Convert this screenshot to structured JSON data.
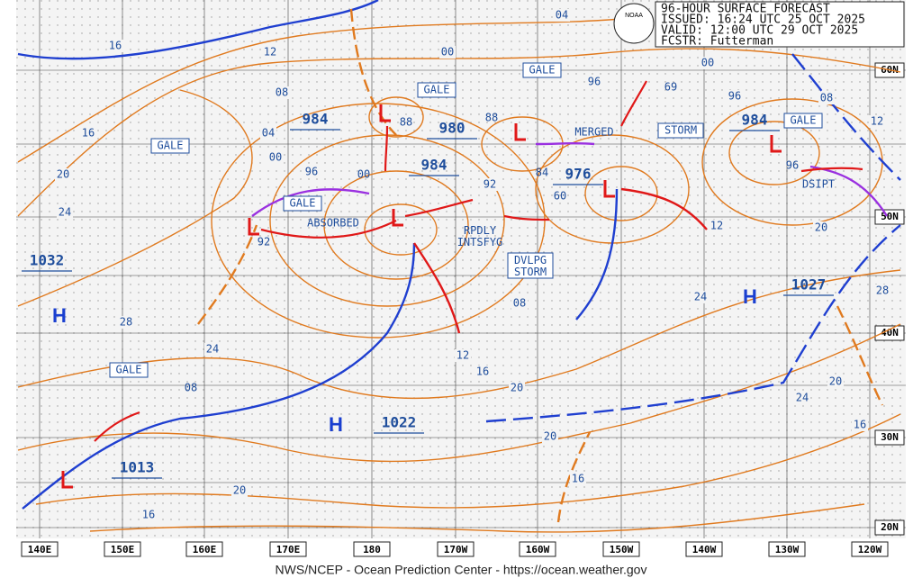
{
  "header": {
    "lines": [
      "96-HOUR SURFACE FORECAST",
      "ISSUED: 16:24 UTC 25 OCT 2025",
      "VALID:  12:00 UTC 29 OCT 2025",
      "FCSTR:  Futterman"
    ],
    "logo": "NOAA"
  },
  "grid": {
    "longitudes": [
      "140E",
      "150E",
      "160E",
      "170E",
      "180",
      "170W",
      "160W",
      "150W",
      "140W",
      "130W",
      "120W"
    ],
    "latitudes": [
      "60N",
      "50N",
      "40N",
      "30N",
      "20N"
    ]
  },
  "pressure_centers": [
    "984",
    "88",
    "980",
    "984",
    "00",
    "92",
    "976",
    "60",
    "88",
    "84",
    "69",
    "984",
    "96",
    "1032",
    "1027",
    "1022",
    "1013",
    "08"
  ],
  "highs": [
    "H",
    "H",
    "H"
  ],
  "annotations": [
    "GALE",
    "GALE",
    "GALE",
    "GALE",
    "GALE",
    "GALE",
    "STORM",
    "MERGED",
    "ABSORBED",
    "RPDLY INTSFYG",
    "DVLPG STORM",
    "DSIPT"
  ],
  "isobar_labels": [
    "16",
    "12",
    "04",
    "00",
    "96",
    "00",
    "96",
    "08",
    "12",
    "08",
    "04",
    "00",
    "96",
    "16",
    "20",
    "24",
    "92",
    "12",
    "20",
    "24",
    "28",
    "08",
    "12",
    "16",
    "20",
    "20",
    "16",
    "28",
    "24",
    "20",
    "16",
    "24",
    "20",
    "16"
  ],
  "footer": "NWS/NCEP - Ocean Prediction Center - https://ocean.weather.gov"
}
